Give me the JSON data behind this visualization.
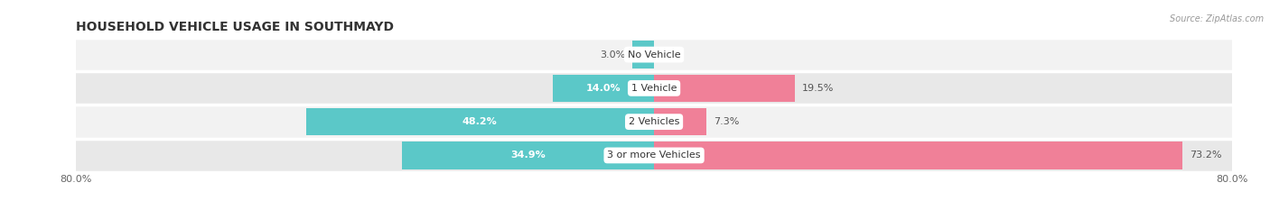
{
  "title": "HOUSEHOLD VEHICLE USAGE IN SOUTHMAYD",
  "source": "Source: ZipAtlas.com",
  "categories": [
    "No Vehicle",
    "1 Vehicle",
    "2 Vehicles",
    "3 or more Vehicles"
  ],
  "owner_values": [
    3.0,
    14.0,
    48.2,
    34.9
  ],
  "renter_values": [
    0.0,
    19.5,
    7.3,
    73.2
  ],
  "owner_color": "#5bc8c8",
  "renter_color": "#f08098",
  "row_bg_colors": [
    "#f2f2f2",
    "#e8e8e8"
  ],
  "xlim": [
    -80,
    80
  ],
  "title_fontsize": 10,
  "label_fontsize": 8,
  "category_fontsize": 8,
  "legend_fontsize": 8.5,
  "bar_height": 0.82,
  "background_color": "#ffffff",
  "text_color": "#555555",
  "white_label_color": "#ffffff"
}
